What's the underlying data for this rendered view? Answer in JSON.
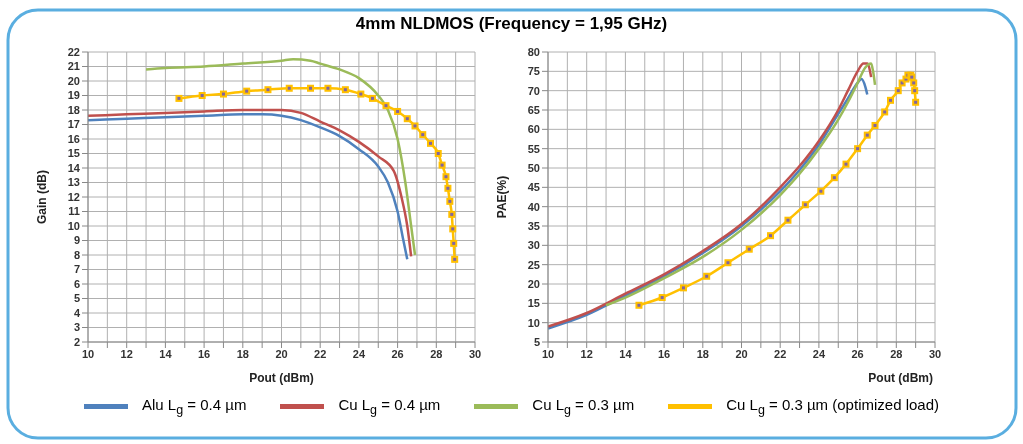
{
  "chart_data": [
    {
      "type": "line",
      "title": "4mm NLDMOS (Frequency = 1,95 GHz)",
      "xlabel": "Pout (dBm)",
      "ylabel": "Gain (dB)",
      "xlim": [
        10,
        30
      ],
      "ylim": [
        2,
        22
      ],
      "xticks": [
        10,
        {
          "value": 11,
          "label": null
        },
        12,
        {
          "value": 13,
          "label": null
        },
        14,
        {
          "value": 15,
          "label": null
        },
        16,
        {
          "value": 17,
          "label": null
        },
        18,
        {
          "value": 19,
          "label": null
        },
        20,
        {
          "value": 21,
          "label": null
        },
        22,
        {
          "value": 23,
          "label": null
        },
        24,
        {
          "value": 25,
          "label": null
        },
        26,
        {
          "value": 27,
          "label": null
        },
        28,
        {
          "value": 29,
          "label": null
        },
        30
      ],
      "yticks": [
        2,
        3,
        4,
        5,
        6,
        7,
        8,
        9,
        10,
        11,
        12,
        13,
        14,
        15,
        16,
        17,
        18,
        19,
        20,
        21,
        22
      ],
      "grid": true,
      "legend": "bottom",
      "series": [
        {
          "name": "Alu L$_{g}$ = 0.4 µm",
          "color": "#4f81bd",
          "marker": "none",
          "x": [
            10,
            12,
            14,
            16,
            18,
            19,
            20,
            21,
            22,
            23,
            24,
            25,
            25.5,
            26,
            26.3,
            26.5
          ],
          "values": [
            17.3,
            17.4,
            17.5,
            17.6,
            17.7,
            17.7,
            17.6,
            17.3,
            16.8,
            16.2,
            15.3,
            14.1,
            13.0,
            11.0,
            9.0,
            7.7
          ]
        },
        {
          "name": "Cu L$_{g}$ = 0.4 µm",
          "color": "#c0504d",
          "marker": "none",
          "x": [
            10,
            12,
            14,
            16,
            18,
            20,
            21,
            22,
            23,
            24,
            25,
            25.8,
            26.2,
            26.5,
            26.7
          ],
          "values": [
            17.6,
            17.7,
            17.8,
            17.9,
            18.0,
            18.0,
            17.8,
            17.2,
            16.6,
            15.8,
            14.8,
            13.8,
            12.0,
            10.0,
            7.9
          ]
        },
        {
          "name": "Cu L$_{g}$ = 0.3 µm",
          "color": "#9bbb59",
          "marker": "none",
          "x": [
            13,
            14,
            16,
            18,
            20,
            20.6,
            21.5,
            22,
            23,
            24,
            25,
            25.5,
            26,
            26.4,
            26.7,
            26.9
          ],
          "values": [
            20.8,
            20.9,
            21.0,
            21.2,
            21.4,
            21.5,
            21.4,
            21.2,
            20.8,
            20.2,
            19.0,
            18.0,
            16.0,
            13.0,
            10.0,
            8.0
          ]
        },
        {
          "name": "Cu L$_{g}$ = 0.3 µm (optimized load)",
          "color": "#ffc000",
          "marker": "square",
          "x": [
            14.7,
            15.9,
            17,
            18.2,
            19.3,
            20.4,
            21.5,
            22.4,
            23.3,
            24.1,
            24.7,
            25.4,
            26,
            26.5,
            26.9,
            27.3,
            27.7,
            28.1,
            28.3,
            28.5,
            28.6,
            28.7,
            28.8,
            28.85,
            28.9,
            28.95
          ],
          "values": [
            18.8,
            19.0,
            19.1,
            19.3,
            19.4,
            19.5,
            19.5,
            19.5,
            19.4,
            19.1,
            18.8,
            18.3,
            17.9,
            17.4,
            16.9,
            16.3,
            15.7,
            15.0,
            14.2,
            13.4,
            12.6,
            11.7,
            10.8,
            9.8,
            8.8,
            7.7
          ]
        }
      ]
    },
    {
      "type": "line",
      "xlabel": "Pout (dBm)",
      "ylabel": "PAE(%)",
      "xlim": [
        10,
        30
      ],
      "ylim": [
        5,
        80
      ],
      "xticks": [
        10,
        {
          "value": 11,
          "label": null
        },
        12,
        {
          "value": 13,
          "label": null
        },
        14,
        {
          "value": 15,
          "label": null
        },
        16,
        {
          "value": 17,
          "label": null
        },
        18,
        {
          "value": 19,
          "label": null
        },
        20,
        {
          "value": 21,
          "label": null
        },
        22,
        {
          "value": 23,
          "label": null
        },
        24,
        {
          "value": 25,
          "label": null
        },
        26,
        {
          "value": 27,
          "label": null
        },
        28,
        {
          "value": 29,
          "label": null
        },
        30
      ],
      "yticks": [
        5,
        10,
        15,
        20,
        25,
        30,
        35,
        40,
        45,
        50,
        55,
        60,
        65,
        70,
        75,
        80
      ],
      "grid": true,
      "series": [
        {
          "color": "#4f81bd",
          "marker": "none",
          "x": [
            10,
            12,
            14,
            16,
            18,
            20,
            22,
            23,
            24,
            25,
            25.5,
            26,
            26.2,
            26.4,
            26.5
          ],
          "values": [
            8.5,
            12,
            17,
            22,
            28,
            35,
            44,
            49.5,
            56,
            64,
            68,
            72,
            73,
            71,
            69
          ]
        },
        {
          "color": "#c0504d",
          "marker": "none",
          "x": [
            10,
            12,
            14,
            16,
            18,
            20,
            22,
            23,
            24,
            25,
            25.5,
            26,
            26.3,
            26.5,
            26.7
          ],
          "values": [
            9,
            12.5,
            17.5,
            22.5,
            28.5,
            35.5,
            45,
            50.5,
            57,
            65,
            70,
            75,
            77,
            77,
            73.5
          ]
        },
        {
          "color": "#9bbb59",
          "marker": "none",
          "x": [
            13,
            14,
            16,
            18,
            20,
            22,
            23,
            24,
            25,
            25.5,
            26,
            26.4,
            26.7,
            26.8,
            26.9
          ],
          "values": [
            14.5,
            16.5,
            21.5,
            27,
            34,
            43,
            48.5,
            55,
            62.5,
            67,
            72,
            76,
            77,
            75,
            71.5
          ]
        },
        {
          "color": "#ffc000",
          "marker": "square",
          "x": [
            14.7,
            15.9,
            17,
            18.2,
            19.3,
            20.4,
            21.5,
            22.4,
            23.3,
            24.1,
            24.8,
            25.4,
            26,
            26.5,
            26.9,
            27.4,
            27.7,
            28.1,
            28.3,
            28.5,
            28.6,
            28.75,
            28.8,
            28.9,
            28.95,
            29
          ],
          "values": [
            14.5,
            16.5,
            19,
            22,
            25.5,
            29,
            32.5,
            36.5,
            40.5,
            44,
            47.5,
            51,
            55,
            58.5,
            61,
            64.5,
            67.5,
            70,
            72,
            73,
            74,
            74,
            73.5,
            72,
            70,
            67
          ]
        }
      ]
    }
  ]
}
